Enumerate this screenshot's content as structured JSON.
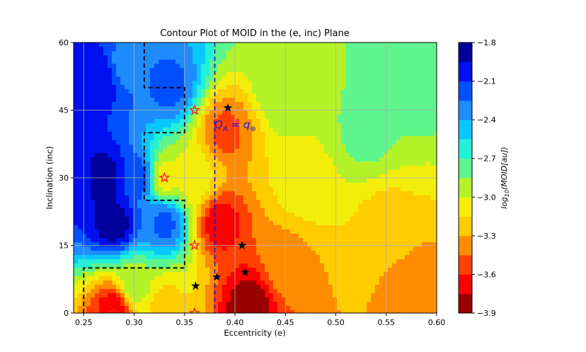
{
  "chart_data": {
    "type": "heatmap",
    "title": "Contour Plot of MOID in the (e, inc) Plane",
    "xlabel": "Eccentricity (e)",
    "ylabel": "Inclination (inc)",
    "xlim": [
      0.24,
      0.6
    ],
    "ylim": [
      0,
      60
    ],
    "xticks": [
      "0.25",
      "0.30",
      "0.35",
      "0.40",
      "0.45",
      "0.50",
      "0.55",
      "0.60"
    ],
    "yticks": [
      "0",
      "15",
      "30",
      "45",
      "60"
    ],
    "grid": true,
    "colorbar": {
      "label": "log10(MOID[au])",
      "label_text": "log",
      "label_sub": "10",
      "label_rest": "(MOID[au])",
      "ticks": [
        "-1.8",
        "-2.1",
        "-2.4",
        "-2.7",
        "-3.0",
        "-3.3",
        "-3.6",
        "-3.9"
      ],
      "range": [
        -3.9,
        -1.8
      ],
      "levels": [
        {
          "lo": -3.9,
          "hi": -3.75,
          "color": "#990000"
        },
        {
          "lo": -3.75,
          "hi": -3.6,
          "color": "#ff0000"
        },
        {
          "lo": -3.6,
          "hi": -3.45,
          "color": "#ff4000"
        },
        {
          "lo": -3.45,
          "hi": -3.3,
          "color": "#ff8c00"
        },
        {
          "lo": -3.3,
          "hi": -3.15,
          "color": "#ffcc00"
        },
        {
          "lo": -3.15,
          "hi": -3.0,
          "color": "#f2ee0a"
        },
        {
          "lo": -3.0,
          "hi": -2.85,
          "color": "#b4f228"
        },
        {
          "lo": -2.85,
          "hi": -2.7,
          "color": "#5ef58c"
        },
        {
          "lo": -2.7,
          "hi": -2.55,
          "color": "#22f0d8"
        },
        {
          "lo": -2.55,
          "hi": -2.4,
          "color": "#0ac8ff"
        },
        {
          "lo": -2.4,
          "hi": -2.25,
          "color": "#1e8cff"
        },
        {
          "lo": -2.25,
          "hi": -2.1,
          "color": "#0050ff"
        },
        {
          "lo": -2.1,
          "hi": -1.95,
          "color": "#0010ee"
        },
        {
          "lo": -1.95,
          "hi": -1.8,
          "color": "#00009a"
        }
      ]
    },
    "vline": {
      "x": 0.38,
      "label": "Q_A = q_⊕",
      "label_main": "Q",
      "label_sub": "A",
      "label_rest": " = q",
      "label_sub2": "⊕",
      "color": "#1a1ad0"
    },
    "boundary_path": [
      [
        0.25,
        0
      ],
      [
        0.25,
        10
      ],
      [
        0.35,
        10
      ],
      [
        0.35,
        25
      ],
      [
        0.31,
        25
      ],
      [
        0.31,
        40
      ],
      [
        0.35,
        40
      ],
      [
        0.35,
        50
      ],
      [
        0.31,
        50
      ],
      [
        0.31,
        60
      ]
    ],
    "red_stars": [
      {
        "e": 0.28,
        "inc": 0
      },
      {
        "e": 0.36,
        "inc": 0
      },
      {
        "e": 0.36,
        "inc": 15
      },
      {
        "e": 0.33,
        "inc": 30
      },
      {
        "e": 0.36,
        "inc": 45
      }
    ],
    "black_stars": [
      {
        "e": 0.361,
        "inc": 6
      },
      {
        "e": 0.382,
        "inc": 8
      },
      {
        "e": 0.41,
        "inc": 9
      },
      {
        "e": 0.407,
        "inc": 15
      },
      {
        "e": 0.393,
        "inc": 45.5
      }
    ],
    "field_regions": [
      {
        "e": 0.245,
        "inc": 30,
        "v": -2.0
      },
      {
        "e": 0.27,
        "inc": 30,
        "v": -1.85
      },
      {
        "e": 0.28,
        "inc": 20,
        "v": -1.85
      },
      {
        "e": 0.265,
        "inc": 52,
        "v": -1.95
      },
      {
        "e": 0.29,
        "inc": 55,
        "v": -2.3
      },
      {
        "e": 0.305,
        "inc": 30,
        "v": -2.15
      },
      {
        "e": 0.33,
        "inc": 30,
        "v": -3.1
      },
      {
        "e": 0.33,
        "inc": 20,
        "v": -2.2
      },
      {
        "e": 0.335,
        "inc": 50,
        "v": -2.2
      },
      {
        "e": 0.3,
        "inc": 6,
        "v": -2.9
      },
      {
        "e": 0.28,
        "inc": 1,
        "v": -3.7
      },
      {
        "e": 0.33,
        "inc": 2,
        "v": -3.2
      },
      {
        "e": 0.36,
        "inc": 30,
        "v": -3.1
      },
      {
        "e": 0.385,
        "inc": 20,
        "v": -3.7
      },
      {
        "e": 0.39,
        "inc": 40,
        "v": -3.5
      },
      {
        "e": 0.415,
        "inc": 2,
        "v": -3.85
      },
      {
        "e": 0.45,
        "inc": 10,
        "v": -3.35
      },
      {
        "e": 0.47,
        "inc": 30,
        "v": -3.05
      },
      {
        "e": 0.45,
        "inc": 50,
        "v": -2.85
      },
      {
        "e": 0.53,
        "inc": 40,
        "v": -2.8
      },
      {
        "e": 0.55,
        "inc": 20,
        "v": -3.2
      },
      {
        "e": 0.58,
        "inc": 55,
        "v": -2.7
      },
      {
        "e": 0.58,
        "inc": 5,
        "v": -3.4
      }
    ]
  }
}
